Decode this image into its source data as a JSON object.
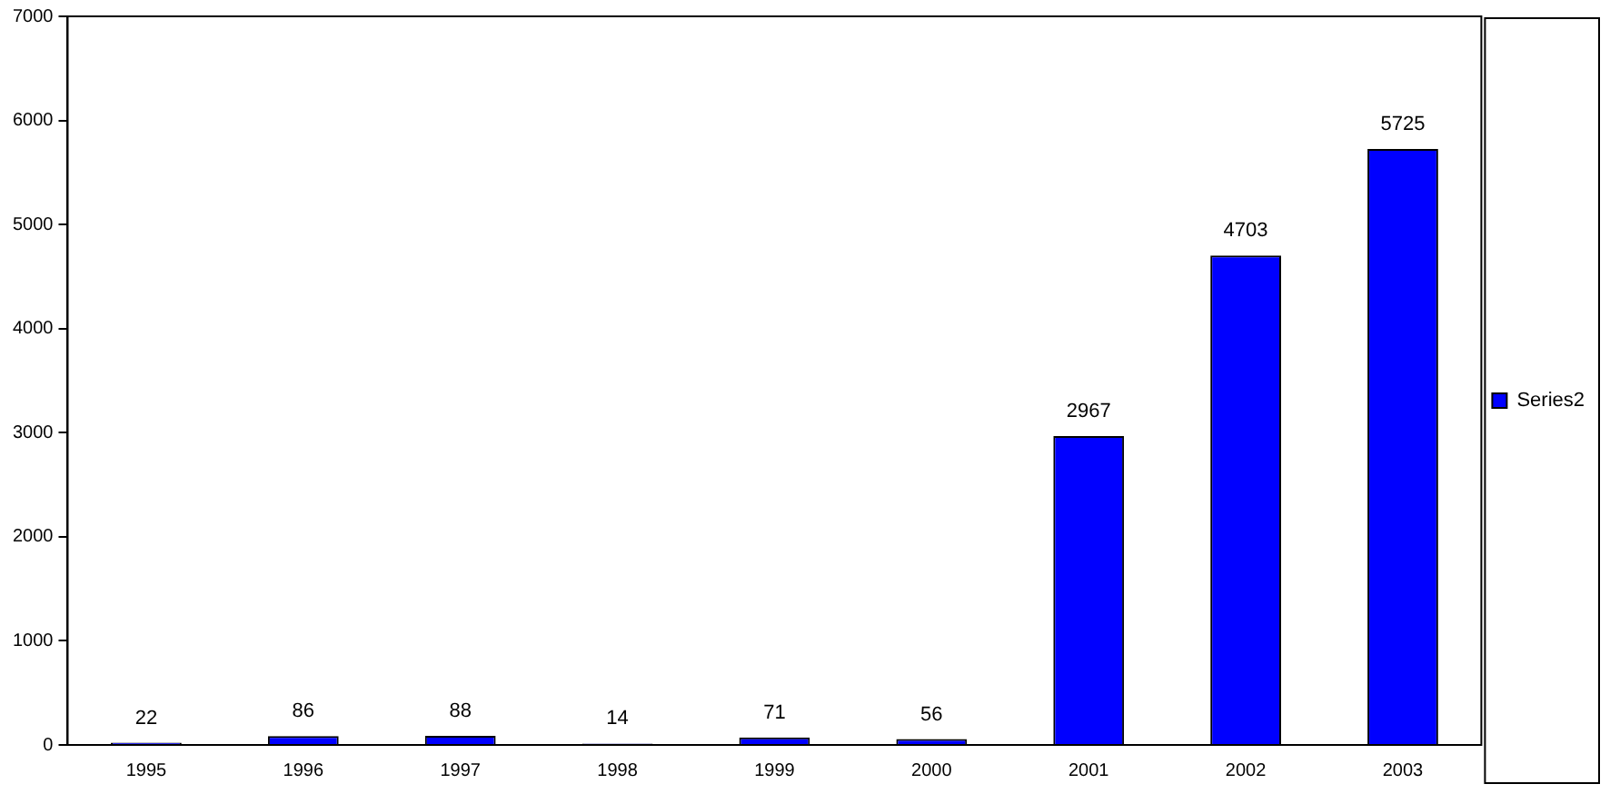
{
  "chart_data": {
    "type": "bar",
    "categories": [
      "1995",
      "1996",
      "1997",
      "1998",
      "1999",
      "2000",
      "2001",
      "2002",
      "2003"
    ],
    "series": [
      {
        "name": "Series2",
        "color": "#0000ff",
        "values": [
          22,
          86,
          88,
          14,
          71,
          56,
          2967,
          4703,
          5725
        ]
      }
    ],
    "ylim": [
      0,
      7000
    ],
    "yticks": [
      0,
      1000,
      2000,
      3000,
      4000,
      5000,
      6000,
      7000
    ],
    "grid": false,
    "legend": "right",
    "data_labels": true
  }
}
